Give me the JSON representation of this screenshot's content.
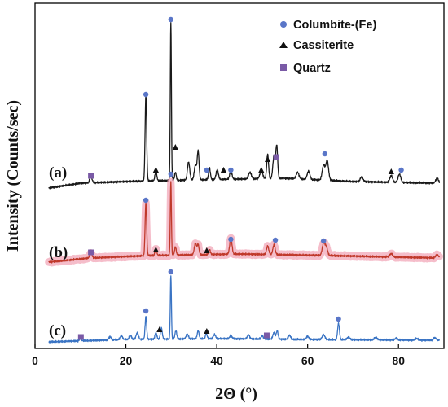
{
  "chart_data": {
    "type": "line",
    "title": "",
    "xlabel": "2Θ (°)",
    "ylabel": "Intensity (Counts/sec)",
    "xlim": [
      0,
      90
    ],
    "xticks": [
      0,
      20,
      40,
      60,
      80
    ],
    "grid": false,
    "legend_position": "top-right",
    "legend": [
      {
        "label": "Columbite-(Fe)",
        "marker": "circle",
        "color": "#5a76c8"
      },
      {
        "label": "Cassiterite",
        "marker": "triangle",
        "color": "#111111"
      },
      {
        "label": "Quartz",
        "marker": "square",
        "color": "#7a5aa6"
      }
    ],
    "series": [
      {
        "name": "(a)",
        "color": "#1a1a1a",
        "baseline": 0,
        "background": [
          [
            3,
            0
          ],
          [
            10,
            6
          ],
          [
            20,
            8
          ],
          [
            35,
            10
          ],
          [
            55,
            12
          ],
          [
            70,
            8
          ],
          [
            89,
            6
          ]
        ],
        "peaks": [
          [
            12.3,
            8,
            0.25
          ],
          [
            24.4,
            105,
            0.17
          ],
          [
            26.6,
            12,
            0.2
          ],
          [
            29.9,
            195,
            0.12
          ],
          [
            30.9,
            10,
            0.18
          ],
          [
            33.8,
            22,
            0.25
          ],
          [
            35.3,
            18,
            0.25
          ],
          [
            35.9,
            35,
            0.2
          ],
          [
            38.4,
            14,
            0.2
          ],
          [
            40.1,
            12,
            0.25
          ],
          [
            43.1,
            10,
            0.25
          ],
          [
            47.3,
            8,
            0.3
          ],
          [
            49.8,
            10,
            0.3
          ],
          [
            51.2,
            30,
            0.2
          ],
          [
            52.6,
            28,
            0.25
          ],
          [
            53.2,
            40,
            0.2
          ],
          [
            57.8,
            8,
            0.3
          ],
          [
            60.2,
            10,
            0.3
          ],
          [
            63.5,
            18,
            0.3
          ],
          [
            64.3,
            24,
            0.3
          ],
          [
            71.9,
            6,
            0.3
          ],
          [
            78.4,
            8,
            0.3
          ],
          [
            80.2,
            10,
            0.3
          ],
          [
            88.5,
            6,
            0.3
          ]
        ],
        "markers": [
          {
            "phase": "quartz",
            "x": 12.3,
            "y": 15
          },
          {
            "phase": "columbite",
            "x": 24.4,
            "y": 115
          },
          {
            "phase": "cassiterite",
            "x": 26.6,
            "y": 22
          },
          {
            "phase": "columbite",
            "x": 29.9,
            "y": 207
          },
          {
            "phase": "cassiterite",
            "x": 30.9,
            "y": 50
          },
          {
            "phase": "columbite",
            "x": 37.8,
            "y": 22
          },
          {
            "phase": "cassiterite",
            "x": 41.5,
            "y": 22
          },
          {
            "phase": "columbite",
            "x": 43.1,
            "y": 22
          },
          {
            "phase": "cassiterite",
            "x": 49.8,
            "y": 22
          },
          {
            "phase": "cassiterite",
            "x": 51.2,
            "y": 35
          },
          {
            "phase": "quartz",
            "x": 53.1,
            "y": 38
          },
          {
            "phase": "columbite",
            "x": 63.8,
            "y": 42
          },
          {
            "phase": "cassiterite",
            "x": 78.4,
            "y": 20
          },
          {
            "phase": "columbite",
            "x": 80.6,
            "y": 22
          }
        ]
      },
      {
        "name": "(b)",
        "color": "#c0392b",
        "band": "#f2a7b8",
        "baseline": 0,
        "background": [
          [
            3,
            0
          ],
          [
            12,
            5
          ],
          [
            25,
            8
          ],
          [
            45,
            10
          ],
          [
            65,
            8
          ],
          [
            89,
            5
          ]
        ],
        "peaks": [
          [
            12.3,
            6,
            0.25
          ],
          [
            24.4,
            65,
            0.17
          ],
          [
            26.6,
            8,
            0.2
          ],
          [
            29.9,
            90,
            0.12
          ],
          [
            30.9,
            10,
            0.18
          ],
          [
            35.3,
            14,
            0.25
          ],
          [
            35.9,
            12,
            0.2
          ],
          [
            38.4,
            6,
            0.2
          ],
          [
            43.1,
            20,
            0.25
          ],
          [
            51.2,
            10,
            0.25
          ],
          [
            52.6,
            12,
            0.25
          ],
          [
            63.5,
            14,
            0.3
          ],
          [
            64.1,
            10,
            0.3
          ],
          [
            78.4,
            4,
            0.3
          ],
          [
            88.5,
            4,
            0.3
          ]
        ],
        "markers": [
          {
            "phase": "quartz",
            "x": 12.3,
            "y": 12
          },
          {
            "phase": "columbite",
            "x": 24.4,
            "y": 76
          },
          {
            "phase": "cassiterite",
            "x": 26.6,
            "y": 15
          },
          {
            "phase": "columbite",
            "x": 29.9,
            "y": 108
          },
          {
            "phase": "cassiterite",
            "x": 37.8,
            "y": 14
          },
          {
            "phase": "columbite",
            "x": 43.1,
            "y": 28
          },
          {
            "phase": "columbite",
            "x": 52.9,
            "y": 27
          },
          {
            "phase": "columbite",
            "x": 63.5,
            "y": 26
          }
        ]
      },
      {
        "name": "(c)",
        "color": "#3a74c4",
        "baseline": 0,
        "background": [
          [
            3,
            0
          ],
          [
            20,
            3
          ],
          [
            40,
            4
          ],
          [
            60,
            3
          ],
          [
            89,
            2
          ]
        ],
        "peaks": [
          [
            10.0,
            3,
            0.2
          ],
          [
            16.5,
            4,
            0.25
          ],
          [
            19.0,
            5,
            0.25
          ],
          [
            21.0,
            5,
            0.25
          ],
          [
            22.5,
            8,
            0.25
          ],
          [
            24.4,
            28,
            0.17
          ],
          [
            26.6,
            8,
            0.2
          ],
          [
            27.8,
            14,
            0.2
          ],
          [
            29.9,
            78,
            0.12
          ],
          [
            31.0,
            10,
            0.2
          ],
          [
            33.5,
            6,
            0.25
          ],
          [
            35.9,
            10,
            0.2
          ],
          [
            37.7,
            6,
            0.2
          ],
          [
            39.5,
            5,
            0.25
          ],
          [
            43.1,
            4,
            0.25
          ],
          [
            47.0,
            5,
            0.25
          ],
          [
            50.0,
            4,
            0.25
          ],
          [
            52.6,
            8,
            0.25
          ],
          [
            53.3,
            10,
            0.2
          ],
          [
            56.0,
            5,
            0.25
          ],
          [
            60.0,
            4,
            0.25
          ],
          [
            63.5,
            6,
            0.3
          ],
          [
            66.8,
            20,
            0.2
          ],
          [
            69.0,
            3,
            0.3
          ],
          [
            75.0,
            3,
            0.3
          ],
          [
            79.5,
            2,
            0.3
          ],
          [
            84.0,
            2,
            0.3
          ],
          [
            88.0,
            3,
            0.3
          ]
        ],
        "markers": [
          {
            "phase": "quartz",
            "x": 10.1,
            "y": 6
          },
          {
            "phase": "columbite",
            "x": 24.4,
            "y": 38
          },
          {
            "phase": "cassiterite",
            "x": 27.4,
            "y": 15
          },
          {
            "phase": "columbite",
            "x": 29.9,
            "y": 86
          },
          {
            "phase": "cassiterite",
            "x": 37.8,
            "y": 13
          },
          {
            "phase": "quartz",
            "x": 51.0,
            "y": 8
          },
          {
            "phase": "columbite",
            "x": 66.8,
            "y": 28
          }
        ]
      }
    ]
  }
}
